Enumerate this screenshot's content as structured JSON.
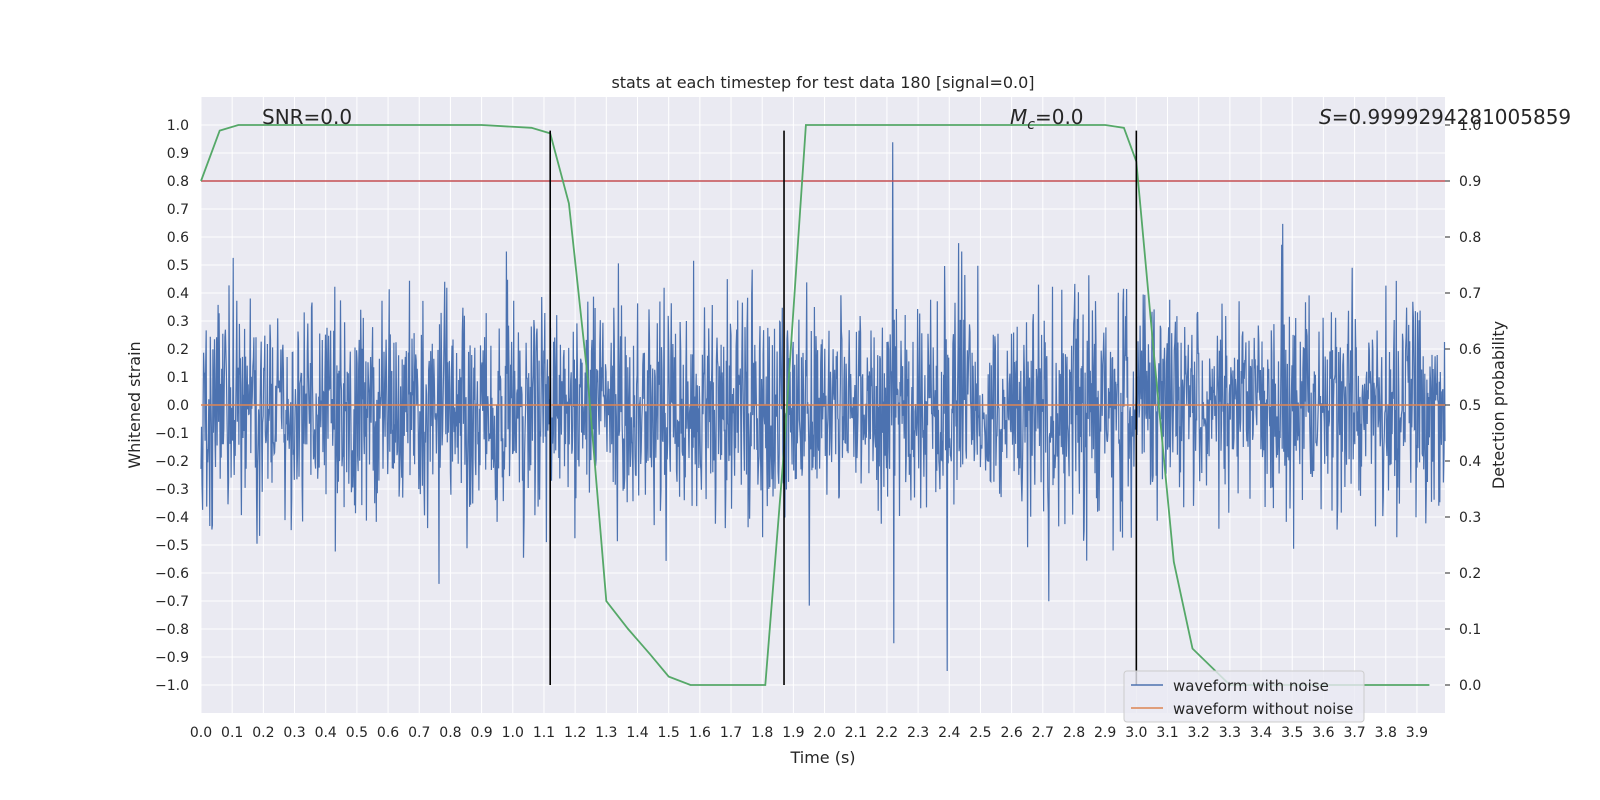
{
  "chart_data": {
    "type": "line",
    "title": "stats at each timestep for test data 180 [signal=0.0]",
    "xlabel": "Time (s)",
    "ylabel": "Whitened strain",
    "y2label": "Detection probability",
    "xlim": [
      0.0,
      3.99
    ],
    "ylim": [
      -1.1,
      1.1
    ],
    "y2lim": [
      -0.05,
      1.05
    ],
    "xticks": [
      "0.0",
      "0.1",
      "0.2",
      "0.3",
      "0.4",
      "0.5",
      "0.6",
      "0.7",
      "0.8",
      "0.9",
      "1.0",
      "1.1",
      "1.2",
      "1.3",
      "1.4",
      "1.5",
      "1.6",
      "1.7",
      "1.8",
      "1.9",
      "2.0",
      "2.1",
      "2.2",
      "2.3",
      "2.4",
      "2.5",
      "2.6",
      "2.7",
      "2.8",
      "2.9",
      "3.0",
      "3.1",
      "3.2",
      "3.3",
      "3.4",
      "3.5",
      "3.6",
      "3.7",
      "3.8",
      "3.9"
    ],
    "yticks": [
      "1.0",
      "0.9",
      "0.8",
      "0.7",
      "0.6",
      "0.5",
      "0.4",
      "0.3",
      "0.2",
      "0.1",
      "0.0",
      "−0.1",
      "−0.2",
      "−0.3",
      "−0.4",
      "−0.5",
      "−0.6",
      "−0.7",
      "−0.8",
      "−0.9",
      "−1.0"
    ],
    "y2ticks": [
      "1.0",
      "0.9",
      "0.8",
      "0.7",
      "0.6",
      "0.5",
      "0.4",
      "0.3",
      "0.2",
      "0.1",
      "0.0"
    ],
    "annotations": {
      "snr": "SNR=0.0",
      "mc_symbol": "M",
      "mc_sub": "c",
      "mc_value": "=0.0",
      "s_symbol": "S",
      "s_value": "=0.9999294281005859"
    },
    "series": [
      {
        "name": "waveform with noise",
        "color": "#4c72b0",
        "description": "whitened strain noise",
        "amplitude_range": [
          -0.95,
          0.98
        ]
      },
      {
        "name": "waveform without noise",
        "color": "#dd8452",
        "value": 0.0
      }
    ],
    "detection_probability": {
      "color": "#55a868",
      "x": [
        0.0,
        0.06,
        0.12,
        0.3,
        0.6,
        0.9,
        1.06,
        1.12,
        1.18,
        1.24,
        1.3,
        1.37,
        1.44,
        1.5,
        1.57,
        1.7,
        1.81,
        1.87,
        1.94,
        2.2,
        2.6,
        2.9,
        2.96,
        3.0,
        3.06,
        3.12,
        3.18,
        3.3,
        3.6,
        3.94
      ],
      "y": [
        0.9,
        0.99,
        1.0,
        1.0,
        1.0,
        1.0,
        0.995,
        0.985,
        0.86,
        0.55,
        0.15,
        0.1,
        0.055,
        0.015,
        0.0,
        0.0,
        0.0,
        0.42,
        1.0,
        1.0,
        1.0,
        1.0,
        0.995,
        0.935,
        0.57,
        0.22,
        0.065,
        0.0,
        0.0,
        0.0
      ]
    },
    "threshold": {
      "value": 0.9,
      "color": "#c44e52"
    },
    "event_markers": {
      "x": [
        1.12,
        1.87,
        3.0
      ],
      "color": "#000000"
    },
    "legend": {
      "location": "lower-right",
      "entries": [
        "waveform with noise",
        "waveform without noise"
      ]
    }
  }
}
